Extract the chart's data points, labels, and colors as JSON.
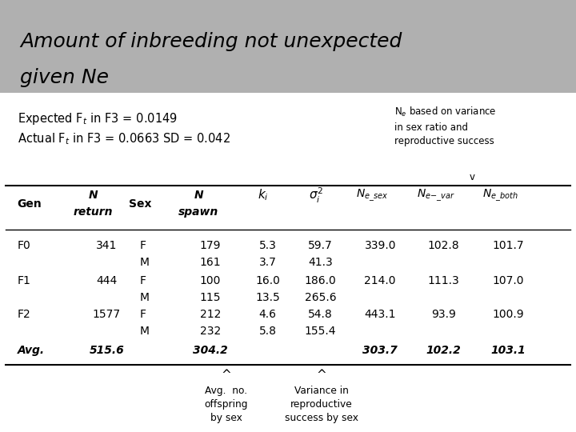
{
  "title_line1": "Amount of inbreeding not unexpected",
  "title_line2": "given Ne",
  "title_bg": "#b0b0b0",
  "rows": [
    [
      "F0",
      "341",
      "F",
      "179",
      "5.3",
      "59.7",
      "339.0",
      "102.8",
      "101.7"
    ],
    [
      "",
      "",
      "M",
      "161",
      "3.7",
      "41.3",
      "",
      "",
      ""
    ],
    [
      "F1",
      "444",
      "F",
      "100",
      "16.0",
      "186.0",
      "214.0",
      "111.3",
      "107.0"
    ],
    [
      "",
      "",
      "M",
      "115",
      "13.5",
      "265.6",
      "",
      "",
      ""
    ],
    [
      "F2",
      "1577",
      "F",
      "212",
      "4.6",
      "54.8",
      "443.1",
      "93.9",
      "100.9"
    ],
    [
      "",
      "",
      "M",
      "232",
      "5.8",
      "155.4",
      "",
      "",
      ""
    ],
    [
      "Avg.",
      "515.6",
      "",
      "304.2",
      "",
      "",
      "303.7",
      "102.2",
      "103.1"
    ]
  ],
  "bg_color": "#ffffff",
  "line_color": "#000000"
}
